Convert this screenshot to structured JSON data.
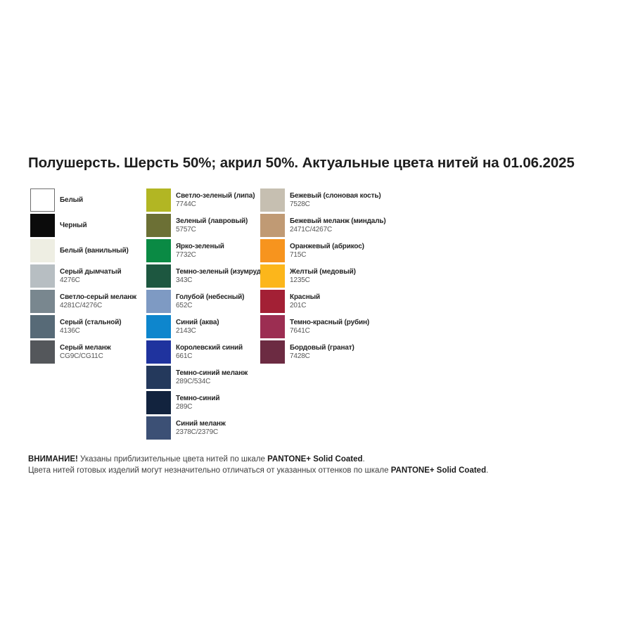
{
  "title": "Полушерсть. Шерсть 50%; акрил 50%. Актуальные цвета нитей на 01.06.2025",
  "palette": {
    "columns": [
      {
        "items": [
          {
            "name": "Белый",
            "code": "",
            "color": "#ffffff",
            "border": "#6e6e6e"
          },
          {
            "name": "Черный",
            "code": "",
            "color": "#0b0b0b",
            "border": ""
          },
          {
            "name": "Белый (ванильный)",
            "code": "",
            "color": "#eeeee3",
            "border": ""
          },
          {
            "name": "Серый дымчатый",
            "code": "4276C",
            "color": "#b7bec2",
            "border": ""
          },
          {
            "name": "Светло-серый меланж",
            "code": "4281C/4276C",
            "color": "#79878f",
            "border": ""
          },
          {
            "name": "Серый (стальной)",
            "code": "4136C",
            "color": "#576a77",
            "border": ""
          },
          {
            "name": "Серый меланж",
            "code": "CG9C/CG11C",
            "color": "#54575b",
            "border": ""
          }
        ]
      },
      {
        "items": [
          {
            "name": "Светло-зеленый (липа)",
            "code": "7744C",
            "color": "#b2b623",
            "border": ""
          },
          {
            "name": "Зеленый (лавровый)",
            "code": "5757C",
            "color": "#6c7035",
            "border": ""
          },
          {
            "name": "Ярко-зеленый",
            "code": "7732C",
            "color": "#0a8a44",
            "border": ""
          },
          {
            "name": "Темно-зеленый (изумруд)",
            "code": "343C",
            "color": "#1d5740",
            "border": ""
          },
          {
            "name": "Голубой (небесный)",
            "code": "652C",
            "color": "#7e9ac3",
            "border": ""
          },
          {
            "name": "Синий (аква)",
            "code": "2143C",
            "color": "#0e86cd",
            "border": ""
          },
          {
            "name": "Королевский синий",
            "code": "661C",
            "color": "#1f339e",
            "border": ""
          },
          {
            "name": "Темно-синий меланж",
            "code": "289C/534C",
            "color": "#24395c",
            "border": ""
          },
          {
            "name": "Темно-синий",
            "code": "289C",
            "color": "#12233e",
            "border": ""
          },
          {
            "name": "Синий меланж",
            "code": "2378C/2379C",
            "color": "#3c5075",
            "border": ""
          }
        ]
      },
      {
        "items": [
          {
            "name": "Бежевый (слоновая кость)",
            "code": "7528C",
            "color": "#c6bfb1",
            "border": ""
          },
          {
            "name": "Бежевый меланж (миндаль)",
            "code": "2471C/4267C",
            "color": "#c09a74",
            "border": ""
          },
          {
            "name": "Оранжевый (абрикос)",
            "code": "715C",
            "color": "#f7941e",
            "border": ""
          },
          {
            "name": "Желтый (медовый)",
            "code": "1235C",
            "color": "#fcb61b",
            "border": ""
          },
          {
            "name": "Красный",
            "code": "201C",
            "color": "#a32035",
            "border": ""
          },
          {
            "name": "Темно-красный (рубин)",
            "code": "7641C",
            "color": "#9c2e52",
            "border": ""
          },
          {
            "name": "Бордовый (гранат)",
            "code": "7428C",
            "color": "#6c2b42",
            "border": ""
          }
        ]
      }
    ]
  },
  "footer": {
    "warning_label": "ВНИМАНИЕ!",
    "line1_text": " Указаны приблизительные цвета нитей по шкале ",
    "pantone_label": "PANTONE+ Solid Coated",
    "line1_period": ".",
    "line2_text": "Цвета нитей готовых изделий могут незначительно отличаться от указанных оттенков по шкале ",
    "line2_period": "."
  }
}
